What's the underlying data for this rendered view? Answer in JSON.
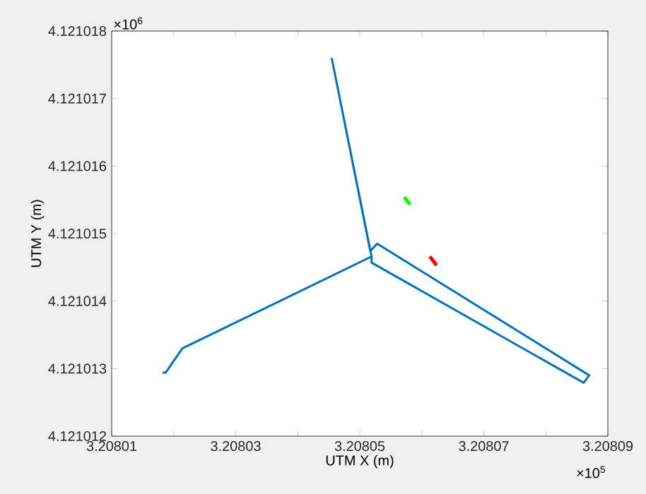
{
  "chart_data": {
    "type": "line",
    "xlabel": "UTM X (m)",
    "ylabel": "UTM Y (m)",
    "annotations": [
      "×10$^{6}$",
      "×10$^{5}$"
    ],
    "xlim": [
      3.20801,
      3.20809
    ],
    "xticks": [
      3.20801,
      {
        "value": 3.20802,
        "label": null
      },
      3.20803,
      {
        "value": 3.20804,
        "label": null
      },
      3.20805,
      {
        "value": 3.20806,
        "label": null
      },
      3.20807,
      {
        "value": 3.20808,
        "label": null
      },
      3.20809
    ],
    "ylim": [
      4.121012,
      4.121018
    ],
    "yticks": [
      4.121012,
      4.121013,
      4.121014,
      4.121015,
      4.121016,
      4.121017,
      4.121018
    ],
    "grid": false,
    "marker": "none",
    "line_style": "solid",
    "series": [
      {
        "color": "#0072bd",
        "x": [
          3.2080182,
          3.2080187,
          3.2080214,
          3.2080519,
          3.2080455,
          3.2080517,
          3.2080528,
          3.208087,
          3.2080861,
          3.2080519,
          3.2080519
        ],
        "values": [
          4.12101294,
          4.12101294,
          4.1210133,
          4.12101466,
          4.12101759,
          4.12101474,
          4.12101485,
          4.1210129,
          4.12101279,
          4.12101457,
          4.12101466
        ]
      },
      {
        "color": "#ff0000",
        "x": [
          3.2080613,
          3.2080618,
          3.2080624
        ],
        "values": [
          4.12101466,
          4.1210146,
          4.12101453
        ]
      },
      {
        "color": "#00ff00",
        "x": [
          3.2080572,
          3.2080576,
          3.2080581
        ],
        "values": [
          4.12101554,
          4.12101549,
          4.12101543
        ]
      }
    ]
  }
}
